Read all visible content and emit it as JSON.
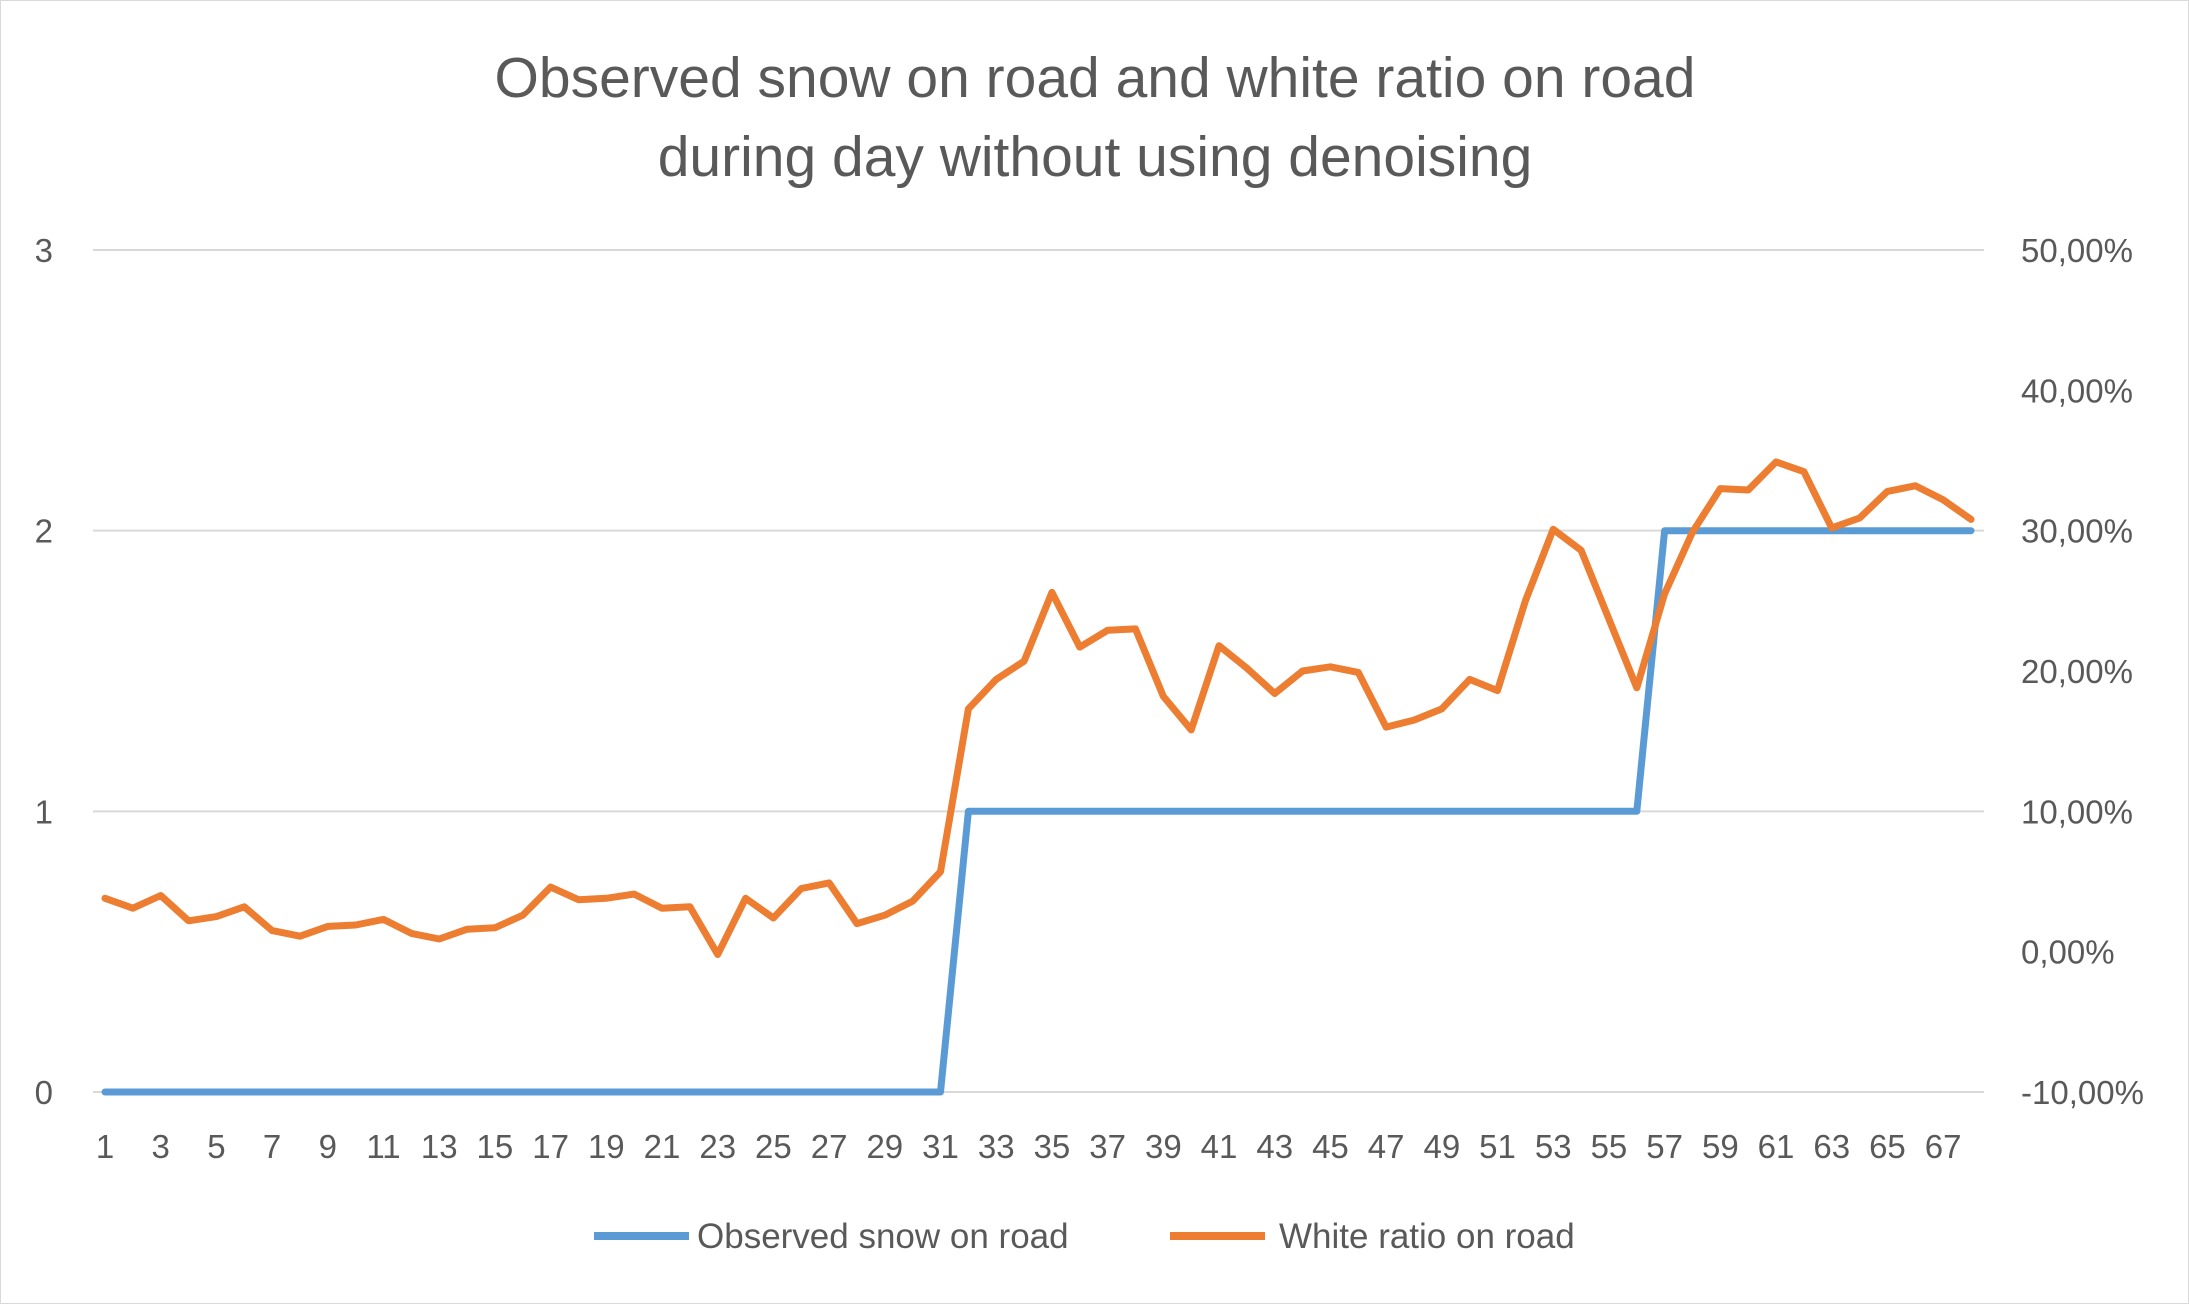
{
  "chart_data": {
    "type": "line",
    "title": "Observed snow on road and white ratio on road during day without using denoising",
    "title_lines": [
      "Observed snow on road and white ratio on road",
      "during day without using denoising"
    ],
    "x": [
      1,
      2,
      3,
      4,
      5,
      6,
      7,
      8,
      9,
      10,
      11,
      12,
      13,
      14,
      15,
      16,
      17,
      18,
      19,
      20,
      21,
      22,
      23,
      24,
      25,
      26,
      27,
      28,
      29,
      30,
      31,
      32,
      33,
      34,
      35,
      36,
      37,
      38,
      39,
      40,
      41,
      42,
      43,
      44,
      45,
      46,
      47,
      48,
      49,
      50,
      51,
      52,
      53,
      54,
      55,
      56,
      57,
      58,
      59,
      60,
      61,
      62,
      63,
      64,
      65,
      66,
      67,
      68
    ],
    "x_tick_labels": [
      "1",
      "3",
      "5",
      "7",
      "9",
      "11",
      "13",
      "15",
      "17",
      "19",
      "21",
      "23",
      "25",
      "27",
      "29",
      "31",
      "33",
      "35",
      "37",
      "39",
      "41",
      "43",
      "45",
      "47",
      "49",
      "51",
      "53",
      "55",
      "57",
      "59",
      "61",
      "63",
      "65",
      "67"
    ],
    "y_left": {
      "range": [
        0,
        3
      ],
      "ticks": [
        "0",
        "1",
        "2",
        "3"
      ]
    },
    "y_right": {
      "range": [
        -10,
        50
      ],
      "ticks": [
        "-10,00%",
        "0,00%",
        "10,00%",
        "20,00%",
        "30,00%",
        "40,00%",
        "50,00%"
      ]
    },
    "grid": true,
    "legend_position": "bottom",
    "series": [
      {
        "name": "Observed snow on road",
        "axis": "left",
        "color": "#5b9bd5",
        "values": [
          0,
          0,
          0,
          0,
          0,
          0,
          0,
          0,
          0,
          0,
          0,
          0,
          0,
          0,
          0,
          0,
          0,
          0,
          0,
          0,
          0,
          0,
          0,
          0,
          0,
          0,
          0,
          0,
          0,
          0,
          0,
          1,
          1,
          1,
          1,
          1,
          1,
          1,
          1,
          1,
          1,
          1,
          1,
          1,
          1,
          1,
          1,
          1,
          1,
          1,
          1,
          1,
          1,
          1,
          1,
          1,
          2,
          2,
          2,
          2,
          2,
          2,
          2,
          2,
          2,
          2,
          2,
          2
        ]
      },
      {
        "name": "White ratio on road",
        "axis": "right",
        "color": "#ed7d31",
        "values": [
          3.8,
          3.1,
          4.0,
          2.2,
          2.5,
          3.2,
          1.5,
          1.1,
          1.8,
          1.9,
          2.3,
          1.3,
          0.9,
          1.6,
          1.7,
          2.6,
          4.6,
          3.7,
          3.8,
          4.1,
          3.1,
          3.2,
          -0.2,
          3.8,
          2.4,
          4.5,
          4.9,
          2.0,
          2.6,
          3.6,
          5.7,
          17.3,
          19.4,
          20.7,
          25.6,
          21.7,
          22.9,
          23.0,
          18.2,
          15.8,
          21.8,
          20.2,
          18.4,
          20.0,
          20.3,
          19.9,
          16.0,
          16.5,
          17.3,
          19.4,
          18.6,
          25.0,
          30.1,
          28.6,
          23.7,
          18.8,
          25.5,
          29.9,
          33.0,
          32.9,
          34.9,
          34.2,
          30.2,
          30.9,
          32.8,
          33.2,
          32.2,
          30.8
        ]
      }
    ]
  }
}
